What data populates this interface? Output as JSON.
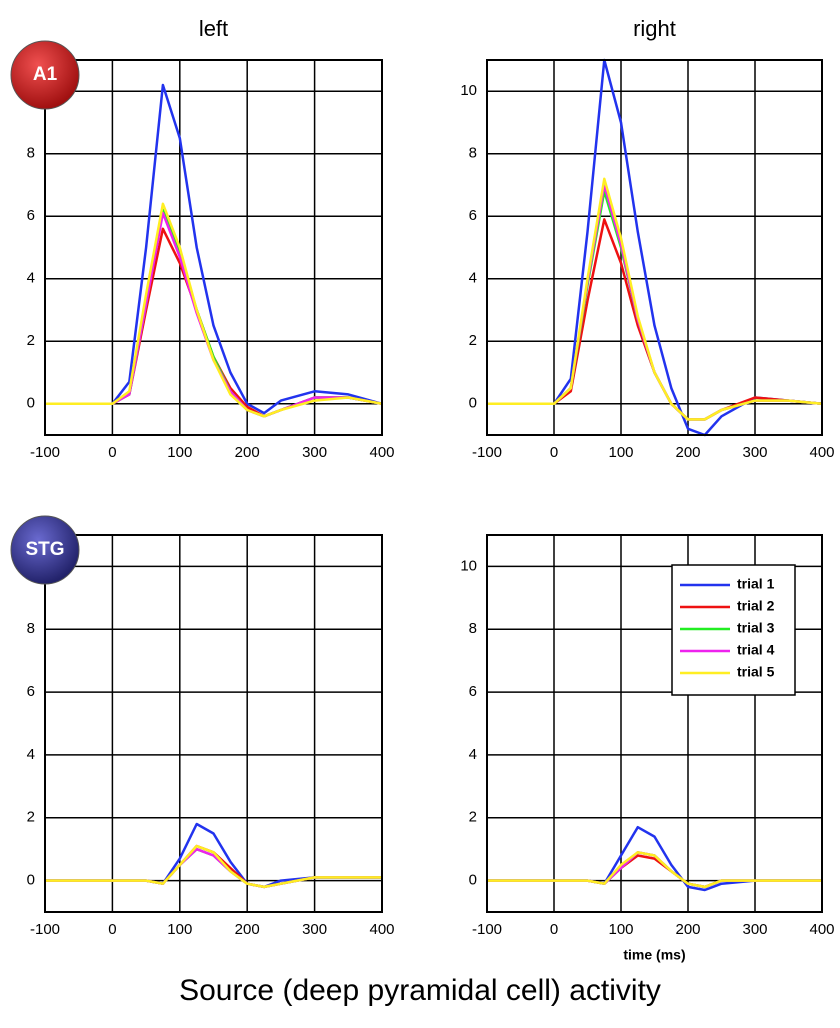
{
  "title": "Source (deep pyramidal cell) activity",
  "chart_data": [
    {
      "type": "line",
      "title": "left",
      "label": "A1",
      "x": [
        -100,
        0,
        25,
        50,
        75,
        100,
        125,
        150,
        175,
        200,
        225,
        250,
        300,
        350,
        400
      ],
      "xlim": [
        -100,
        400
      ],
      "xticks": [
        -100,
        0,
        100,
        200,
        300,
        400
      ],
      "ylim": [
        -1,
        11
      ],
      "yticks": [
        0,
        2,
        4,
        6,
        8,
        10
      ],
      "grid": true,
      "series": [
        {
          "color": "#2233ee",
          "values": [
            0,
            0,
            0.7,
            5,
            10.2,
            8.5,
            5,
            2.5,
            1,
            0,
            -0.3,
            0.1,
            0.4,
            0.3,
            0
          ]
        },
        {
          "color": "#ee1111",
          "values": [
            0,
            0,
            0.3,
            3,
            5.6,
            4.5,
            3,
            1.5,
            0.5,
            -0.1,
            -0.4,
            -0.2,
            0.2,
            0.2,
            0
          ]
        },
        {
          "color": "#22ee22",
          "values": [
            0,
            0,
            0.3,
            3.2,
            6.2,
            4.8,
            3,
            1.5,
            0.4,
            -0.2,
            -0.4,
            -0.2,
            0.2,
            0.2,
            0
          ]
        },
        {
          "color": "#ee22ee",
          "values": [
            0,
            0,
            0.3,
            3.2,
            6.1,
            4.7,
            2.9,
            1.4,
            0.4,
            -0.2,
            -0.4,
            -0.2,
            0.2,
            0.2,
            0
          ]
        },
        {
          "color": "#ffee22",
          "values": [
            0,
            0,
            0.4,
            3.5,
            6.4,
            5,
            3,
            1.4,
            0.3,
            -0.2,
            -0.4,
            -0.2,
            0.1,
            0.2,
            0
          ]
        }
      ]
    },
    {
      "type": "line",
      "title": "right",
      "x": [
        -100,
        0,
        25,
        50,
        75,
        100,
        125,
        150,
        175,
        200,
        225,
        250,
        300,
        350,
        400
      ],
      "xlim": [
        -100,
        400
      ],
      "xticks": [
        -100,
        0,
        100,
        200,
        300,
        400
      ],
      "ylim": [
        -1,
        11
      ],
      "yticks": [
        0,
        2,
        4,
        6,
        8,
        10
      ],
      "grid": true,
      "series": [
        {
          "color": "#2233ee",
          "values": [
            0,
            0,
            0.8,
            5.5,
            11,
            9,
            5.5,
            2.5,
            0.5,
            -0.8,
            -1,
            -0.4,
            0.2,
            0.1,
            0
          ]
        },
        {
          "color": "#ee1111",
          "values": [
            0,
            0,
            0.4,
            3.3,
            5.9,
            4.5,
            2.5,
            1,
            0,
            -0.5,
            -0.5,
            -0.2,
            0.2,
            0.1,
            0
          ]
        },
        {
          "color": "#22ee22",
          "values": [
            0,
            0,
            0.5,
            3.8,
            6.8,
            5,
            2.7,
            1,
            0,
            -0.5,
            -0.5,
            -0.2,
            0.1,
            0.1,
            0
          ]
        },
        {
          "color": "#ee22ee",
          "values": [
            0,
            0,
            0.5,
            3.9,
            7,
            5.1,
            2.7,
            1,
            0,
            -0.5,
            -0.5,
            -0.2,
            0.1,
            0.1,
            0
          ]
        },
        {
          "color": "#ffee22",
          "values": [
            0,
            0,
            0.5,
            4,
            7.2,
            5.3,
            2.8,
            1,
            0,
            -0.5,
            -0.5,
            -0.2,
            0.1,
            0.1,
            0
          ]
        }
      ]
    },
    {
      "type": "line",
      "label": "STG",
      "x": [
        -100,
        0,
        25,
        50,
        75,
        100,
        125,
        150,
        175,
        200,
        225,
        250,
        300,
        350,
        400
      ],
      "xlim": [
        -100,
        400
      ],
      "xticks": [
        -100,
        0,
        100,
        200,
        300,
        400
      ],
      "ylim": [
        -1,
        11
      ],
      "yticks": [
        0,
        2,
        4,
        6,
        8,
        10
      ],
      "grid": true,
      "series": [
        {
          "color": "#2233ee",
          "values": [
            0,
            0,
            0,
            0,
            -0.1,
            0.7,
            1.8,
            1.5,
            0.6,
            -0.1,
            -0.2,
            0,
            0.1,
            0.1,
            0.1
          ]
        },
        {
          "color": "#ee1111",
          "values": [
            0,
            0,
            0,
            0,
            -0.1,
            0.5,
            1.1,
            0.9,
            0.4,
            -0.1,
            -0.2,
            -0.1,
            0.1,
            0.1,
            0.1
          ]
        },
        {
          "color": "#22ee22",
          "values": [
            0,
            0,
            0,
            0,
            -0.1,
            0.5,
            1,
            0.8,
            0.3,
            -0.1,
            -0.2,
            -0.1,
            0.1,
            0.1,
            0.1
          ]
        },
        {
          "color": "#ee22ee",
          "values": [
            0,
            0,
            0,
            0,
            -0.1,
            0.5,
            1,
            0.8,
            0.3,
            -0.1,
            -0.2,
            -0.1,
            0.1,
            0.1,
            0.1
          ]
        },
        {
          "color": "#ffee22",
          "values": [
            0,
            0,
            0,
            0,
            -0.1,
            0.5,
            1.1,
            0.9,
            0.3,
            -0.1,
            -0.2,
            -0.1,
            0.1,
            0.1,
            0.1
          ]
        }
      ]
    },
    {
      "type": "line",
      "xlabel": "time (ms)",
      "legend": "upper right",
      "x": [
        -100,
        0,
        25,
        50,
        75,
        100,
        125,
        150,
        175,
        200,
        225,
        250,
        300,
        350,
        400
      ],
      "xlim": [
        -100,
        400
      ],
      "xticks": [
        -100,
        0,
        100,
        200,
        300,
        400
      ],
      "ylim": [
        -1,
        11
      ],
      "yticks": [
        0,
        2,
        4,
        6,
        8,
        10
      ],
      "grid": true,
      "series": [
        {
          "name": "trial 1",
          "color": "#2233ee",
          "values": [
            0,
            0,
            0,
            0,
            -0.1,
            0.8,
            1.7,
            1.4,
            0.5,
            -0.2,
            -0.3,
            -0.1,
            0,
            0,
            0
          ]
        },
        {
          "name": "trial 2",
          "color": "#ee1111",
          "values": [
            0,
            0,
            0,
            0,
            -0.1,
            0.4,
            0.8,
            0.7,
            0.3,
            -0.1,
            -0.2,
            0,
            0,
            0,
            0
          ]
        },
        {
          "name": "trial 3",
          "color": "#22ee22",
          "values": [
            0,
            0,
            0,
            0,
            -0.1,
            0.4,
            0.9,
            0.8,
            0.3,
            -0.1,
            -0.2,
            0,
            0,
            0,
            0
          ]
        },
        {
          "name": "trial 4",
          "color": "#ee22ee",
          "values": [
            0,
            0,
            0,
            0,
            -0.1,
            0.4,
            0.9,
            0.8,
            0.3,
            -0.1,
            -0.2,
            0,
            0,
            0,
            0
          ]
        },
        {
          "name": "trial 5",
          "color": "#ffee22",
          "values": [
            0,
            0,
            0,
            0,
            -0.1,
            0.5,
            0.9,
            0.8,
            0.3,
            -0.1,
            -0.2,
            0,
            0,
            0,
            0
          ]
        }
      ]
    }
  ]
}
